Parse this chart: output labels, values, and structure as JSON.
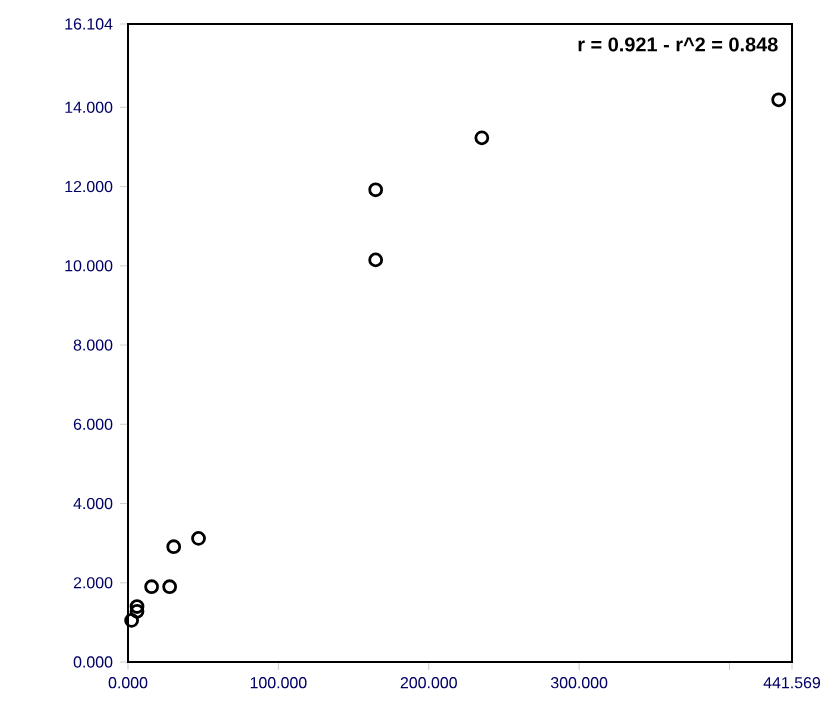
{
  "chart_data": {
    "type": "scatter",
    "color": "#000000",
    "marker": "circle",
    "x": [
      2.4,
      6.0,
      6.0,
      15.7,
      27.7,
      30.4,
      46.9,
      164.7,
      164.7,
      235.3,
      432.7
    ],
    "values": [
      1.05,
      1.4,
      1.28,
      1.9,
      1.9,
      2.91,
      3.12,
      10.15,
      11.92,
      13.23,
      14.19
    ],
    "xlim": [
      0,
      441.569
    ],
    "xticks": [
      {
        "value": 0,
        "label": "0.000"
      },
      {
        "value": 100,
        "label": "100.000"
      },
      {
        "value": 200,
        "label": "200.000"
      },
      {
        "value": 300,
        "label": "300.000"
      },
      {
        "value": 400,
        "label": null
      },
      {
        "value": 441.569,
        "label": "441.569"
      }
    ],
    "ylim": [
      0,
      16.104
    ],
    "yticks": [
      {
        "value": 0,
        "label": "0.000"
      },
      {
        "value": 2,
        "label": "2.000"
      },
      {
        "value": 4,
        "label": "4.000"
      },
      {
        "value": 6,
        "label": "6.000"
      },
      {
        "value": 8,
        "label": "8.000"
      },
      {
        "value": 10,
        "label": "10.000"
      },
      {
        "value": 12,
        "label": "12.000"
      },
      {
        "value": 14,
        "label": "14.000"
      },
      {
        "value": 16.104,
        "label": "16.104"
      }
    ],
    "annotations": [
      "r = 0.921 - r^2 = 0.848"
    ]
  }
}
